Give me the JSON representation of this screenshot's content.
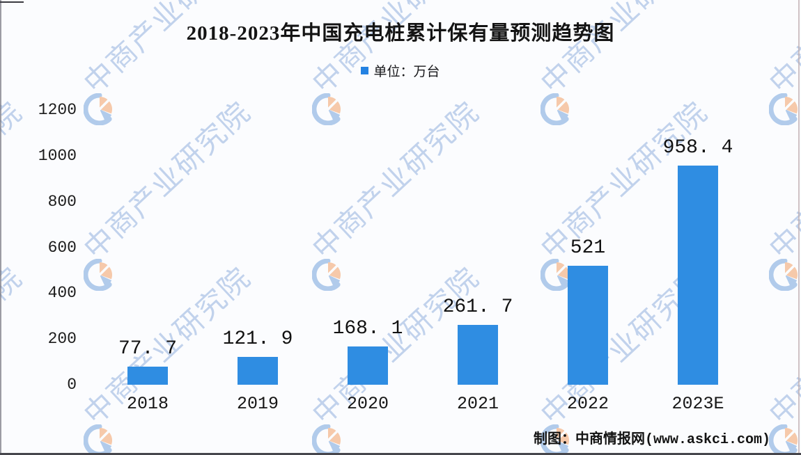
{
  "title": "2018-2023年中国充电桩累计保有量预测趋势图",
  "legend": {
    "label": "单位：万台",
    "marker_color": "#2482e2"
  },
  "footer": {
    "credit": "制图：中商情报网(www.askci.com)"
  },
  "watermark": {
    "text": "中商产业研究院",
    "logo_blue": "#a9c6ea",
    "logo_orange": "#f6c4a2"
  },
  "chart_data": {
    "type": "bar",
    "title": "2018-2023年中国充电桩累计保有量预测趋势图",
    "unit_label": "单位：万台",
    "categories": [
      "2018",
      "2019",
      "2020",
      "2021",
      "2022",
      "2023E"
    ],
    "values": [
      77.7,
      121.9,
      168.1,
      261.7,
      521,
      958.4
    ],
    "value_labels": [
      "77. 7",
      "121. 9",
      "168. 1",
      "261. 7",
      "521",
      "958. 4"
    ],
    "bar_color": "#2f8de2",
    "ylabel": "",
    "xlabel": "",
    "ylim": [
      0,
      1200
    ],
    "yticks": [
      0,
      200,
      400,
      600,
      800,
      1000,
      1200
    ],
    "grid": false,
    "legend_position": "top-center",
    "source": "制图：中商情报网(www.askci.com)"
  }
}
